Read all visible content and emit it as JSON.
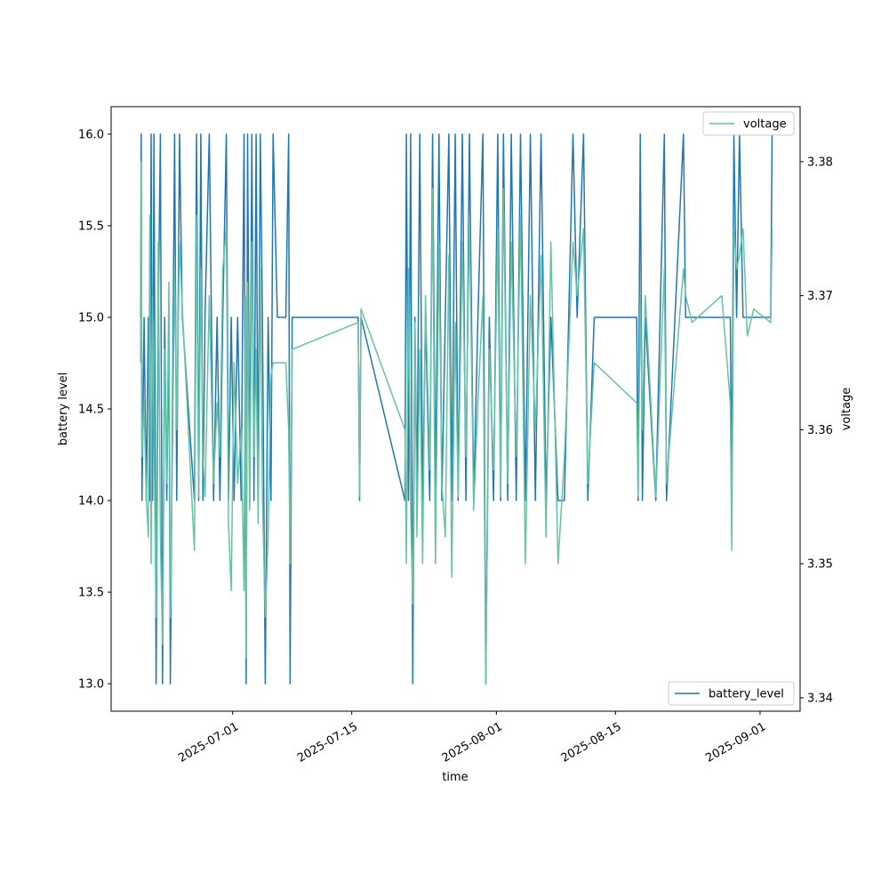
{
  "chart_data": {
    "type": "line",
    "xlabel": "time",
    "ylabel": "battery level",
    "ylabel_right": "voltage",
    "xlim": [
      "2025-06-16T17:00",
      "2025-09-05T17:00"
    ],
    "ylim": [
      12.85,
      16.15
    ],
    "ylim_right": [
      3.339,
      3.3841
    ],
    "x_ticks": [
      "2025-07-01",
      "2025-07-15",
      "2025-08-01",
      "2025-08-15",
      "2025-09-01"
    ],
    "y_ticks": [
      "13.0",
      "13.5",
      "14.0",
      "14.5",
      "15.0",
      "15.5",
      "16.0"
    ],
    "y_ticks_right": [
      "3.34",
      "3.35",
      "3.36",
      "3.37",
      "3.38"
    ],
    "legend": [
      {
        "label": "voltage",
        "placement": "top-right",
        "color": "#66c2a5"
      },
      {
        "label": "battery_level",
        "placement": "bottom-right",
        "color": "#1f77b4"
      }
    ],
    "x": [
      "2025-06-20T04:00",
      "2025-06-20T06:00",
      "2025-06-20T08:00",
      "2025-06-20T14:00",
      "2025-06-20T20:00",
      "2025-06-21T02:00",
      "2025-06-21T06:00",
      "2025-06-21T10:00",
      "2025-06-21T14:00",
      "2025-06-21T18:00",
      "2025-06-22T00:00",
      "2025-06-22T06:00",
      "2025-06-22T12:00",
      "2025-06-22T18:00",
      "2025-06-23T00:00",
      "2025-06-23T06:00",
      "2025-06-23T12:00",
      "2025-06-23T16:00",
      "2025-06-23T20:00",
      "2025-06-24T04:00",
      "2025-06-24T10:00",
      "2025-06-24T18:00",
      "2025-06-25T02:00",
      "2025-06-26T12:00",
      "2025-06-26T18:00",
      "2025-06-27T00:00",
      "2025-06-27T06:00",
      "2025-06-27T12:00",
      "2025-06-27T18:00",
      "2025-06-28T06:00",
      "2025-06-28T18:00",
      "2025-06-29T04:00",
      "2025-06-29T12:00",
      "2025-06-29T20:00",
      "2025-06-30T06:00",
      "2025-06-30T12:00",
      "2025-06-30T20:00",
      "2025-07-01T04:00",
      "2025-07-01T14:00",
      "2025-07-02T00:00",
      "2025-07-02T08:00",
      "2025-07-02T12:00",
      "2025-07-02T14:00",
      "2025-07-02T18:00",
      "2025-07-03T00:00",
      "2025-07-03T06:00",
      "2025-07-03T12:00",
      "2025-07-03T18:00",
      "2025-07-04T00:00",
      "2025-07-04T06:00",
      "2025-07-04T12:00",
      "2025-07-04T20:00",
      "2025-07-05T04:00",
      "2025-07-05T12:00",
      "2025-07-05T18:00",
      "2025-07-06T06:00",
      "2025-07-07T06:00",
      "2025-07-07T14:00",
      "2025-07-07T18:00",
      "2025-07-08T00:00",
      "2025-07-15T18:00",
      "2025-07-15T22:00",
      "2025-07-16T02:00",
      "2025-07-21T06:00",
      "2025-07-21T10:00",
      "2025-07-21T16:00",
      "2025-07-21T22:00",
      "2025-07-22T04:00",
      "2025-07-22T10:00",
      "2025-07-22T16:00",
      "2025-07-23T00:00",
      "2025-07-23T08:00",
      "2025-07-23T16:00",
      "2025-07-24T04:00",
      "2025-07-24T12:00",
      "2025-07-24T20:00",
      "2025-07-25T06:00",
      "2025-07-25T14:00",
      "2025-07-26T00:00",
      "2025-07-26T10:00",
      "2025-07-26T18:00",
      "2025-07-27T04:00",
      "2025-07-27T12:00",
      "2025-07-28T00:00",
      "2025-07-28T10:00",
      "2025-07-28T20:00",
      "2025-07-29T08:00",
      "2025-07-29T20:00",
      "2025-07-30T10:00",
      "2025-07-30T18:00",
      "2025-07-31T04:00",
      "2025-07-31T16:00",
      "2025-08-01T04:00",
      "2025-08-01T12:00",
      "2025-08-01T20:00",
      "2025-08-02T08:00",
      "2025-08-02T18:00",
      "2025-08-03T08:00",
      "2025-08-03T20:00",
      "2025-08-04T10:00",
      "2025-08-05T00:00",
      "2025-08-05T14:00",
      "2025-08-06T06:00",
      "2025-08-06T20:00",
      "2025-08-07T10:00",
      "2025-08-08T06:00",
      "2025-08-09T00:00",
      "2025-08-10T00:00",
      "2025-08-10T12:00",
      "2025-08-11T06:00",
      "2025-08-11T18:00",
      "2025-08-12T12:00",
      "2025-08-17T12:00",
      "2025-08-17T16:00",
      "2025-08-17T22:00",
      "2025-08-18T04:00",
      "2025-08-18T12:00",
      "2025-08-19T18:00",
      "2025-08-20T18:00",
      "2025-08-21T00:00",
      "2025-08-23T00:00",
      "2025-08-23T06:00",
      "2025-08-24T00:00",
      "2025-08-27T12:00",
      "2025-08-28T12:00",
      "2025-08-28T16:00",
      "2025-08-28T22:00",
      "2025-08-29T06:00",
      "2025-08-29T14:00",
      "2025-08-30T00:00",
      "2025-08-30T12:00",
      "2025-08-31T06:00",
      "2025-09-02T06:00",
      "2025-09-02T10:00"
    ],
    "series": [
      {
        "name": "battery_level",
        "axis": "left",
        "color": "#1f77b4",
        "values": [
          15,
          16,
          14,
          15,
          14,
          15,
          14,
          16,
          14,
          16,
          13,
          15,
          16,
          13,
          15,
          14,
          15,
          13,
          14,
          16,
          14,
          16,
          15,
          14,
          16,
          14,
          16,
          14,
          15,
          16,
          14,
          15,
          14,
          15,
          16,
          14,
          15,
          14,
          15,
          14,
          16,
          14,
          13,
          16,
          14,
          16,
          14,
          16,
          14,
          16,
          15,
          13,
          15,
          14,
          16,
          15,
          15,
          16,
          13,
          15,
          15,
          14,
          15,
          14,
          16,
          14,
          16,
          13,
          15,
          14,
          16,
          14,
          15,
          14,
          16,
          14,
          16,
          14,
          15,
          16,
          14,
          16,
          14,
          16,
          14,
          16,
          14,
          15,
          16,
          13,
          15,
          14,
          16,
          14,
          16,
          14,
          16,
          14,
          16,
          14,
          16,
          14,
          16,
          14,
          15,
          14,
          14,
          16,
          15,
          16,
          14,
          15,
          15,
          14,
          16,
          14,
          15,
          14,
          16,
          14,
          16,
          15,
          15,
          15,
          15,
          14,
          16,
          15,
          16,
          15,
          15,
          15,
          15,
          16
        ]
      },
      {
        "name": "voltage",
        "axis": "right",
        "color": "#66c2a5",
        "values": [
          3.365,
          3.38,
          3.358,
          3.362,
          3.355,
          3.352,
          3.376,
          3.35,
          3.37,
          3.36,
          3.346,
          3.374,
          3.352,
          3.344,
          3.366,
          3.356,
          3.371,
          3.346,
          3.354,
          3.372,
          3.36,
          3.374,
          3.369,
          3.351,
          3.376,
          3.355,
          3.372,
          3.358,
          3.355,
          3.37,
          3.356,
          3.362,
          3.358,
          3.372,
          3.375,
          3.353,
          3.348,
          3.365,
          3.356,
          3.36,
          3.348,
          3.37,
          3.343,
          3.371,
          3.354,
          3.374,
          3.358,
          3.366,
          3.353,
          3.372,
          3.355,
          3.346,
          3.352,
          3.364,
          3.365,
          3.365,
          3.365,
          3.36,
          3.35,
          3.366,
          3.368,
          3.355,
          3.369,
          3.36,
          3.35,
          3.372,
          3.354,
          3.347,
          3.368,
          3.352,
          3.366,
          3.35,
          3.37,
          3.357,
          3.378,
          3.35,
          3.374,
          3.356,
          3.352,
          3.373,
          3.349,
          3.368,
          3.355,
          3.374,
          3.358,
          3.376,
          3.354,
          3.362,
          3.37,
          3.341,
          3.366,
          3.357,
          3.375,
          3.355,
          3.378,
          3.356,
          3.374,
          3.358,
          3.376,
          3.35,
          3.37,
          3.36,
          3.373,
          3.352,
          3.374,
          3.35,
          3.358,
          3.374,
          3.37,
          3.375,
          3.356,
          3.365,
          3.362,
          3.355,
          3.37,
          3.36,
          3.37,
          3.355,
          3.372,
          3.356,
          3.372,
          3.37,
          3.368,
          3.37,
          3.362,
          3.351,
          3.375,
          3.372,
          3.373,
          3.375,
          3.367,
          3.369,
          3.368,
          3.375
        ]
      }
    ]
  }
}
